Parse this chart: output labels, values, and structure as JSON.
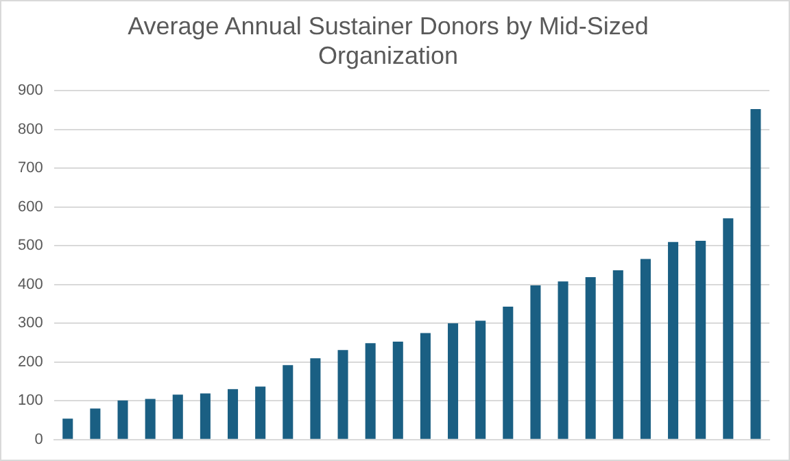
{
  "chart_data": {
    "type": "bar",
    "title": "Average Annual Sustainer Donors by Mid-Sized Organization",
    "categories": [
      null,
      null,
      null,
      null,
      null,
      null,
      null,
      null,
      null,
      null,
      null,
      null,
      null,
      null,
      null,
      null,
      null,
      null,
      null,
      null,
      null,
      null,
      null,
      null,
      null,
      null
    ],
    "values": [
      54,
      80,
      101,
      105,
      116,
      119,
      130,
      137,
      192,
      210,
      231,
      249,
      253,
      275,
      300,
      307,
      343,
      398,
      408,
      419,
      437,
      466,
      510,
      513,
      571,
      853
    ],
    "color": "#1a5f83",
    "ylim": [
      0,
      900
    ],
    "yticks": [
      0,
      100,
      200,
      300,
      400,
      500,
      600,
      700,
      800,
      900
    ],
    "grid": "y"
  }
}
